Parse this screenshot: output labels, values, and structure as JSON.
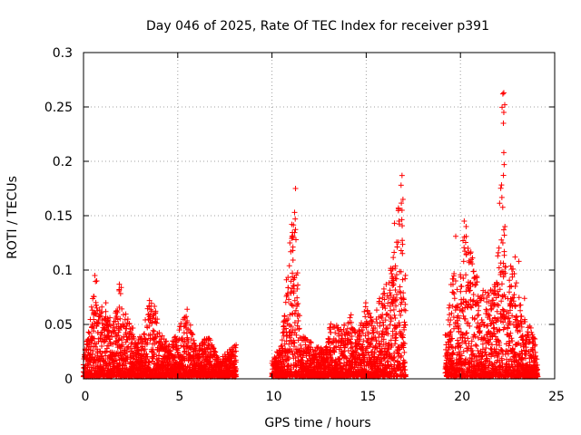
{
  "chart_data": {
    "type": "scatter",
    "title": "Day 046 of 2025, Rate Of TEC Index for receiver p391",
    "xlabel": "GPS time / hours",
    "ylabel": "ROTI / TECUs",
    "xlim": [
      0,
      25
    ],
    "ylim": [
      0,
      0.3
    ],
    "xticks": [
      0,
      5,
      10,
      15,
      20,
      25
    ],
    "xtick_labels": [
      "0",
      "5",
      "10",
      "15",
      "20",
      "25"
    ],
    "yticks": [
      0,
      0.05,
      0.1,
      0.15,
      0.2,
      0.25,
      0.3
    ],
    "ytick_labels": [
      "0",
      "0.05",
      "0.1",
      "0.15",
      "0.2",
      "0.25",
      "0.3"
    ],
    "grid": true,
    "marker": "+",
    "color": "#ff0000",
    "series": [
      {
        "name": "ROTI",
        "segments": [
          {
            "start": 0.0,
            "end": 8.1
          },
          {
            "start": 10.0,
            "end": 17.1
          },
          {
            "start": 19.2,
            "end": 24.1
          }
        ],
        "envelope": [
          [
            0.0,
            0.02
          ],
          [
            0.3,
            0.045
          ],
          [
            0.5,
            0.08
          ],
          [
            0.6,
            0.095
          ],
          [
            0.8,
            0.06
          ],
          [
            1.2,
            0.07
          ],
          [
            1.6,
            0.05
          ],
          [
            1.9,
            0.085
          ],
          [
            2.2,
            0.06
          ],
          [
            2.6,
            0.045
          ],
          [
            3.1,
            0.035
          ],
          [
            3.4,
            0.065
          ],
          [
            3.7,
            0.07
          ],
          [
            4.1,
            0.04
          ],
          [
            4.6,
            0.03
          ],
          [
            5.2,
            0.05
          ],
          [
            5.5,
            0.06
          ],
          [
            6.0,
            0.025
          ],
          [
            6.6,
            0.04
          ],
          [
            7.2,
            0.015
          ],
          [
            8.0,
            0.03
          ],
          [
            10.0,
            0.015
          ],
          [
            10.5,
            0.03
          ],
          [
            10.8,
            0.1
          ],
          [
            11.0,
            0.12
          ],
          [
            11.1,
            0.14
          ],
          [
            11.2,
            0.175
          ],
          [
            11.5,
            0.04
          ],
          [
            12.2,
            0.03
          ],
          [
            12.8,
            0.025
          ],
          [
            13.1,
            0.05
          ],
          [
            13.7,
            0.045
          ],
          [
            14.2,
            0.06
          ],
          [
            14.5,
            0.035
          ],
          [
            15.0,
            0.07
          ],
          [
            15.4,
            0.05
          ],
          [
            15.8,
            0.08
          ],
          [
            16.2,
            0.09
          ],
          [
            16.6,
            0.13
          ],
          [
            16.8,
            0.185
          ],
          [
            17.0,
            0.11
          ],
          [
            19.2,
            0.04
          ],
          [
            19.6,
            0.1
          ],
          [
            19.9,
            0.08
          ],
          [
            20.2,
            0.14
          ],
          [
            20.5,
            0.12
          ],
          [
            20.8,
            0.1
          ],
          [
            21.2,
            0.08
          ],
          [
            21.6,
            0.09
          ],
          [
            22.0,
            0.12
          ],
          [
            22.2,
            0.26
          ],
          [
            22.4,
            0.11
          ],
          [
            22.8,
            0.1
          ],
          [
            23.2,
            0.07
          ],
          [
            23.6,
            0.05
          ],
          [
            24.0,
            0.035
          ]
        ],
        "points": [
          [
            0.6,
            0.095
          ],
          [
            0.7,
            0.09
          ],
          [
            1.9,
            0.087
          ],
          [
            2.0,
            0.084
          ],
          [
            3.5,
            0.072
          ],
          [
            5.5,
            0.064
          ],
          [
            11.25,
            0.175
          ],
          [
            11.2,
            0.153
          ],
          [
            11.05,
            0.142
          ],
          [
            10.95,
            0.125
          ],
          [
            11.1,
            0.118
          ],
          [
            16.9,
            0.187
          ],
          [
            16.85,
            0.178
          ],
          [
            16.95,
            0.165
          ],
          [
            16.9,
            0.155
          ],
          [
            16.5,
            0.143
          ],
          [
            20.2,
            0.145
          ],
          [
            20.3,
            0.14
          ],
          [
            19.75,
            0.131
          ],
          [
            20.4,
            0.12
          ],
          [
            22.3,
            0.263
          ],
          [
            22.25,
            0.262
          ],
          [
            22.35,
            0.252
          ],
          [
            22.3,
            0.245
          ],
          [
            22.28,
            0.235
          ],
          [
            22.3,
            0.208
          ],
          [
            22.32,
            0.197
          ],
          [
            22.3,
            0.137
          ],
          [
            22.25,
            0.125
          ],
          [
            22.9,
            0.112
          ],
          [
            23.1,
            0.108
          ],
          [
            23.4,
            0.074
          ]
        ]
      }
    ]
  }
}
